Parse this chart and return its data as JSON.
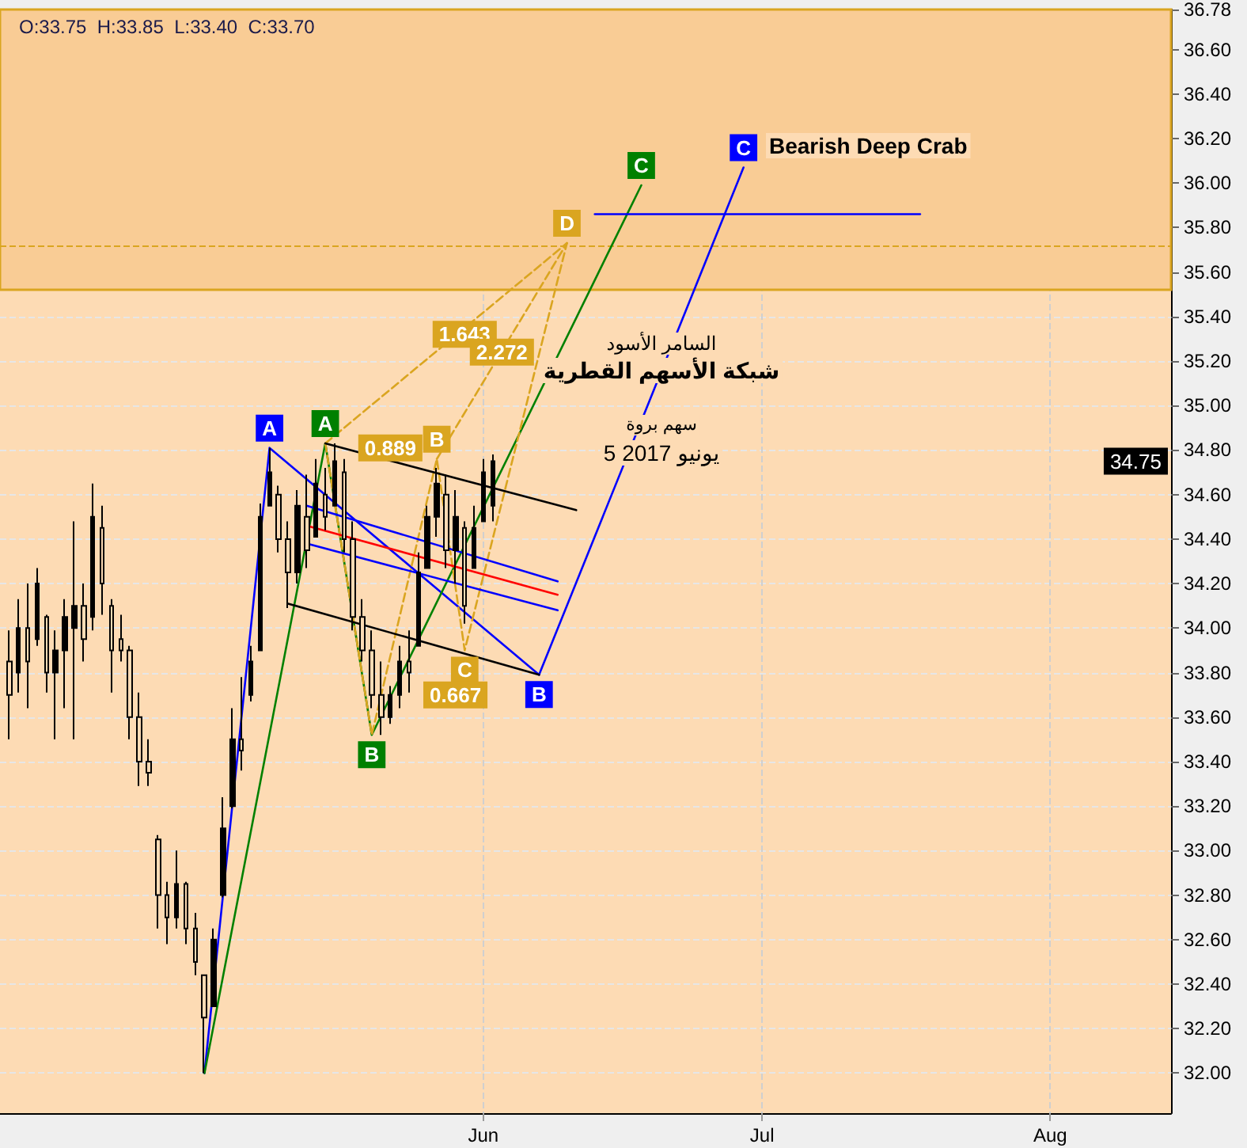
{
  "chart_data": {
    "type": "candlestick",
    "x": [
      "2017-04-11",
      "2017-04-12",
      "2017-04-13",
      "2017-04-14",
      "2017-04-15",
      "2017-04-16",
      "2017-04-17",
      "2017-04-18",
      "2017-04-19",
      "2017-04-20",
      "2017-04-21",
      "2017-04-22",
      "2017-04-23",
      "2017-04-24",
      "2017-04-25",
      "2017-04-26",
      "2017-04-27",
      "2017-04-28",
      "2017-04-29",
      "2017-04-30",
      "2017-05-01",
      "2017-05-02",
      "2017-05-03",
      "2017-05-04",
      "2017-05-05",
      "2017-05-06",
      "2017-05-07",
      "2017-05-08",
      "2017-05-09",
      "2017-05-10",
      "2017-05-11",
      "2017-05-12",
      "2017-05-13",
      "2017-05-14",
      "2017-05-15",
      "2017-05-16",
      "2017-05-17",
      "2017-05-18",
      "2017-05-19",
      "2017-05-20",
      "2017-05-21",
      "2017-05-22",
      "2017-05-23",
      "2017-05-24",
      "2017-05-25",
      "2017-05-26",
      "2017-05-27",
      "2017-05-28",
      "2017-05-29",
      "2017-05-30",
      "2017-05-31",
      "2017-06-01",
      "2017-06-02"
    ],
    "ohlc": [
      [
        33.85,
        33.99,
        33.5,
        33.7
      ],
      [
        33.8,
        34.13,
        33.71,
        34.0
      ],
      [
        34.0,
        34.2,
        33.64,
        33.85
      ],
      [
        33.95,
        34.27,
        33.92,
        34.2
      ],
      [
        34.05,
        34.06,
        33.71,
        33.8
      ],
      [
        33.8,
        33.99,
        33.5,
        33.9
      ],
      [
        33.9,
        34.13,
        33.64,
        34.05
      ],
      [
        34.0,
        34.48,
        33.5,
        34.1
      ],
      [
        34.1,
        34.2,
        33.85,
        33.95
      ],
      [
        34.05,
        34.65,
        33.99,
        34.5
      ],
      [
        34.45,
        34.55,
        34.06,
        34.2
      ],
      [
        34.1,
        34.13,
        33.71,
        33.9
      ],
      [
        33.95,
        34.06,
        33.85,
        33.9
      ],
      [
        33.9,
        33.92,
        33.5,
        33.6
      ],
      [
        33.6,
        33.71,
        33.29,
        33.4
      ],
      [
        33.4,
        33.5,
        33.29,
        33.35
      ],
      [
        33.05,
        33.07,
        32.65,
        32.8
      ],
      [
        32.8,
        32.86,
        32.58,
        32.7
      ],
      [
        32.7,
        33.0,
        32.65,
        32.85
      ],
      [
        32.85,
        32.86,
        32.58,
        32.65
      ],
      [
        32.65,
        32.72,
        32.44,
        32.5
      ],
      [
        32.44,
        32.44,
        32.0,
        32.25
      ],
      [
        32.3,
        32.65,
        32.3,
        32.6
      ],
      [
        32.8,
        33.24,
        32.79,
        33.1
      ],
      [
        33.2,
        33.64,
        33.19,
        33.5
      ],
      [
        33.5,
        33.78,
        33.36,
        33.45
      ],
      [
        33.7,
        33.92,
        33.67,
        33.85
      ],
      [
        33.9,
        34.56,
        33.9,
        34.5
      ],
      [
        34.55,
        34.81,
        34.55,
        34.7
      ],
      [
        34.6,
        34.64,
        34.34,
        34.4
      ],
      [
        34.4,
        34.48,
        34.09,
        34.25
      ],
      [
        34.25,
        34.62,
        34.2,
        34.55
      ],
      [
        34.5,
        34.69,
        34.27,
        34.35
      ],
      [
        34.41,
        34.76,
        34.41,
        34.65
      ],
      [
        34.6,
        34.72,
        34.44,
        34.5
      ],
      [
        34.55,
        34.83,
        34.55,
        34.75
      ],
      [
        34.7,
        34.76,
        34.34,
        34.4
      ],
      [
        34.4,
        34.48,
        33.99,
        34.05
      ],
      [
        34.05,
        34.13,
        33.85,
        33.9
      ],
      [
        33.9,
        33.99,
        33.64,
        33.7
      ],
      [
        33.7,
        33.85,
        33.52,
        33.6
      ],
      [
        33.6,
        33.74,
        33.57,
        33.7
      ],
      [
        33.7,
        33.92,
        33.64,
        33.85
      ],
      [
        33.85,
        33.99,
        33.71,
        33.8
      ],
      [
        33.92,
        34.34,
        33.92,
        34.25
      ],
      [
        34.27,
        34.55,
        34.27,
        34.5
      ],
      [
        34.5,
        34.72,
        34.41,
        34.65
      ],
      [
        34.6,
        34.69,
        34.27,
        34.35
      ],
      [
        34.35,
        34.62,
        34.2,
        34.5
      ],
      [
        34.45,
        34.48,
        34.02,
        34.1
      ],
      [
        34.27,
        34.55,
        34.27,
        34.45
      ],
      [
        34.48,
        34.76,
        34.48,
        34.7
      ],
      [
        34.55,
        34.78,
        34.48,
        34.75
      ]
    ],
    "color": "#000000",
    "series": [
      {
        "type": "line",
        "color": "#0000ff",
        "x": [
          "2017-05-02",
          "2017-05-09",
          "2017-06-07",
          "2017-06-29"
        ],
        "values": [
          32.0,
          34.81,
          33.79,
          36.07
        ],
        "value_labels": [
          null,
          "A",
          "B",
          "C"
        ]
      },
      {
        "type": "line",
        "color": "#008000",
        "x": [
          "2017-05-02",
          "2017-05-15",
          "2017-05-20",
          "2017-06-18"
        ],
        "values": [
          32.0,
          34.83,
          33.52,
          35.99
        ],
        "value_labels": [
          null,
          "A",
          "B",
          "C"
        ]
      },
      {
        "type": "line",
        "color": "#daa520",
        "line_style": "dashed",
        "x": [
          "2017-05-15",
          "2017-05-20",
          "2017-05-27",
          "2017-05-30",
          "2017-06-10"
        ],
        "values": [
          34.83,
          33.52,
          34.76,
          33.9,
          35.73
        ],
        "value_labels": [
          null,
          null,
          "B",
          "C",
          "D"
        ]
      },
      {
        "type": "line",
        "color": "#daa520",
        "line_style": "dashed",
        "x": [
          "2017-05-15",
          "2017-06-10"
        ],
        "values": [
          34.83,
          35.73
        ]
      },
      {
        "type": "line",
        "color": "#daa520",
        "line_style": "dashed",
        "x": [
          "2017-05-27",
          "2017-06-10"
        ],
        "values": [
          34.76,
          35.73
        ]
      },
      {
        "type": "line",
        "color": "#0000ff",
        "x": [
          "2017-06-13",
          "2017-07-18"
        ],
        "values": [
          35.86,
          35.86
        ]
      },
      {
        "type": "line",
        "color": "#000000",
        "x": [
          "2017-05-15",
          "2017-06-11"
        ],
        "values": [
          34.83,
          34.53
        ]
      },
      {
        "type": "line",
        "color": "#000000",
        "x": [
          "2017-05-11",
          "2017-06-07"
        ],
        "values": [
          34.11,
          33.79
        ]
      },
      {
        "type": "line",
        "color": "#0000ff",
        "x": [
          "2017-05-13",
          "2017-06-09"
        ],
        "values": [
          34.55,
          34.21
        ]
      },
      {
        "type": "line",
        "color": "#ff0000",
        "x": [
          "2017-05-13",
          "2017-06-09"
        ],
        "values": [
          34.46,
          34.15
        ]
      },
      {
        "type": "line",
        "color": "#0000ff",
        "x": [
          "2017-05-13",
          "2017-06-09"
        ],
        "values": [
          34.38,
          34.08
        ]
      }
    ],
    "xlim": [
      "2017-04-10",
      "2017-08-14"
    ],
    "xticks": [
      {
        "value": "2017-06-01",
        "label": "Jun"
      },
      {
        "value": "2017-07-01",
        "label": "Jul"
      },
      {
        "value": "2017-08-01",
        "label": "Aug"
      }
    ],
    "ylim": [
      31.82,
      36.78
    ],
    "yticks": [
      {
        "value": 32,
        "label": "32.00"
      },
      {
        "value": 32.2,
        "label": "32.20"
      },
      {
        "value": 32.4,
        "label": "32.40"
      },
      {
        "value": 32.6,
        "label": "32.60"
      },
      {
        "value": 32.8,
        "label": "32.80"
      },
      {
        "value": 33,
        "label": "33.00"
      },
      {
        "value": 33.2,
        "label": "33.20"
      },
      {
        "value": 33.4,
        "label": "33.40"
      },
      {
        "value": 33.6,
        "label": "33.60"
      },
      {
        "value": 33.8,
        "label": "33.80"
      },
      {
        "value": 34,
        "label": "34.00"
      },
      {
        "value": 34.2,
        "label": "34.20"
      },
      {
        "value": 34.4,
        "label": "34.40"
      },
      {
        "value": 34.6,
        "label": "34.60"
      },
      {
        "value": 34.8,
        "label": "34.80"
      },
      {
        "value": 35,
        "label": "35.00"
      },
      {
        "value": 35.2,
        "label": "35.20"
      },
      {
        "value": 35.4,
        "label": "35.40"
      },
      {
        "value": 35.6,
        "label": "35.60"
      },
      {
        "value": 35.8,
        "label": "35.80"
      },
      {
        "value": 36,
        "label": "36.00"
      },
      {
        "value": 36.2,
        "label": "36.20"
      },
      {
        "value": 36.4,
        "label": "36.40"
      },
      {
        "value": 36.6,
        "label": "36.60"
      },
      {
        "value": 36.78,
        "label": "36.78"
      }
    ],
    "grid": true,
    "bands": [
      {
        "axis": "y",
        "from": 35.52,
        "to": 36.78,
        "color": "#f9cc95"
      }
    ],
    "ref_lines": [
      {
        "axis": "y",
        "value": 35.72,
        "color": "#daa520",
        "line_style": "dashed"
      }
    ],
    "annotations": [
      "O:33.75  H:33.85  L:33.40  C:33.70",
      "Bearish Deep Crab",
      "السامر الأسود",
      "شبكة الأسهم القطرية",
      "سهم بروة",
      "5 يونيو 2017",
      {
        "text": "0.889",
        "x": "2017-05-22",
        "y": 34.81
      },
      {
        "text": "0.667",
        "x": "2017-05-29",
        "y": 33.7
      },
      {
        "text": "1.643",
        "x": "2017-05-30",
        "y": 35.32
      },
      {
        "text": "2.272",
        "x": "2017-06-03",
        "y": 35.24
      },
      {
        "text": "34.75",
        "y": 34.75
      }
    ]
  }
}
